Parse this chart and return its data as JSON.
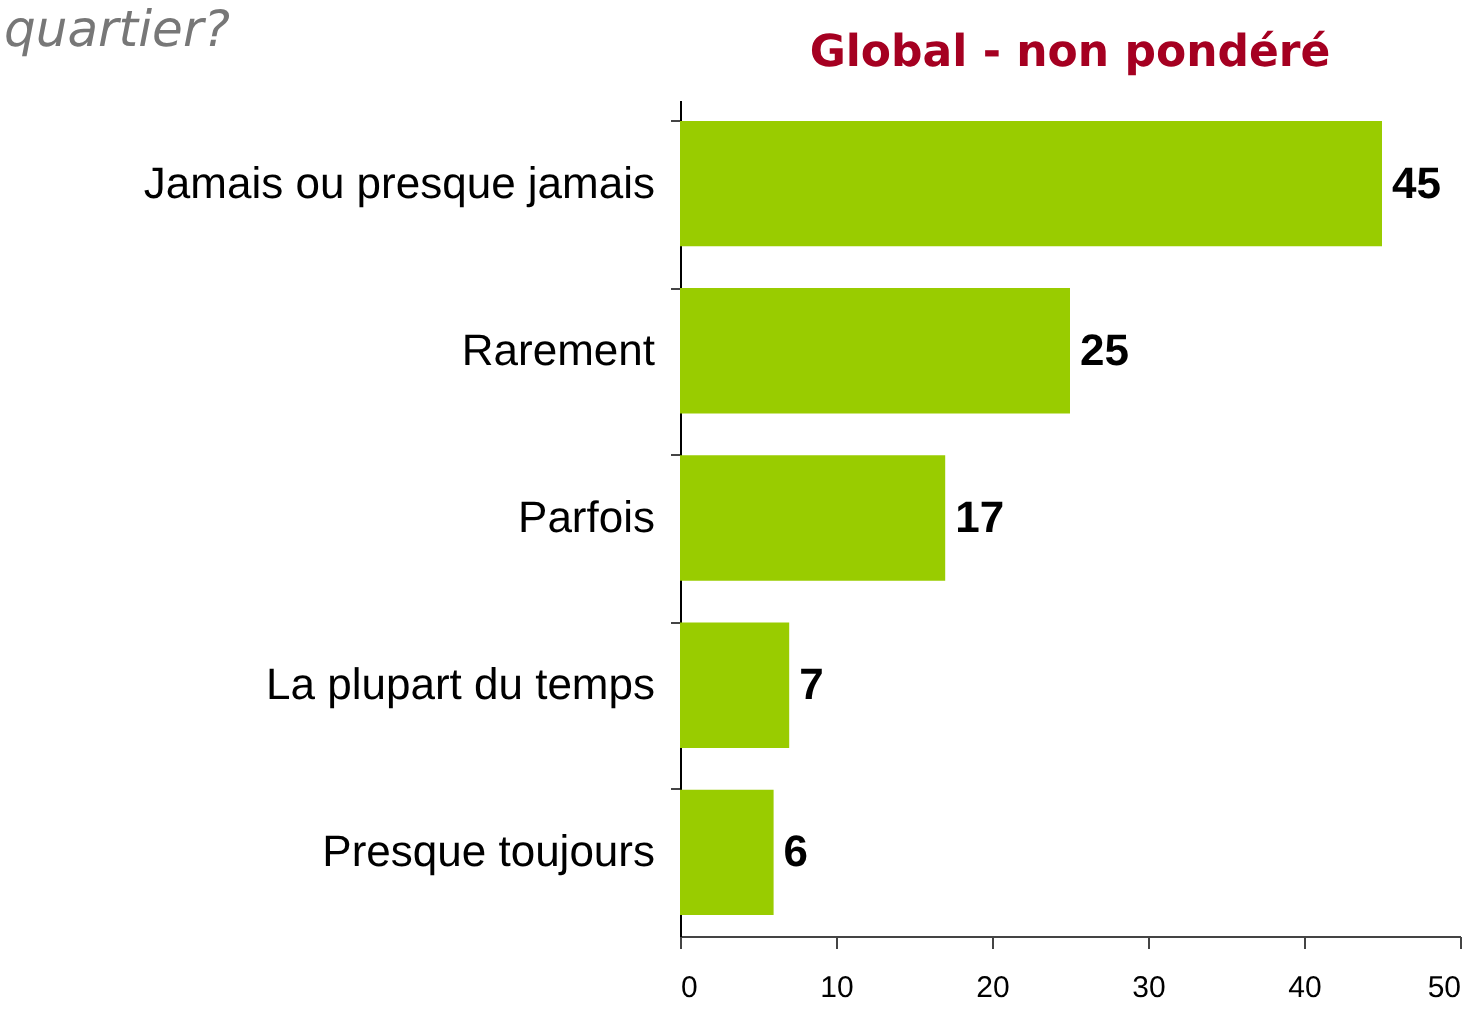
{
  "chart_data": {
    "type": "bar",
    "orientation": "horizontal",
    "title": "Global - non pondéré",
    "annotations": [
      "quartier?"
    ],
    "categories": [
      "Jamais ou presque jamais",
      "Rarement",
      "Parfois",
      "La plupart du temps",
      "Presque toujours"
    ],
    "values": [
      45,
      25,
      17,
      7,
      6
    ],
    "color": "#99cc00",
    "xlim": [
      0,
      50
    ],
    "xticks": [
      0,
      10,
      20,
      30,
      40,
      50
    ],
    "data_labels": true,
    "grid": false
  }
}
